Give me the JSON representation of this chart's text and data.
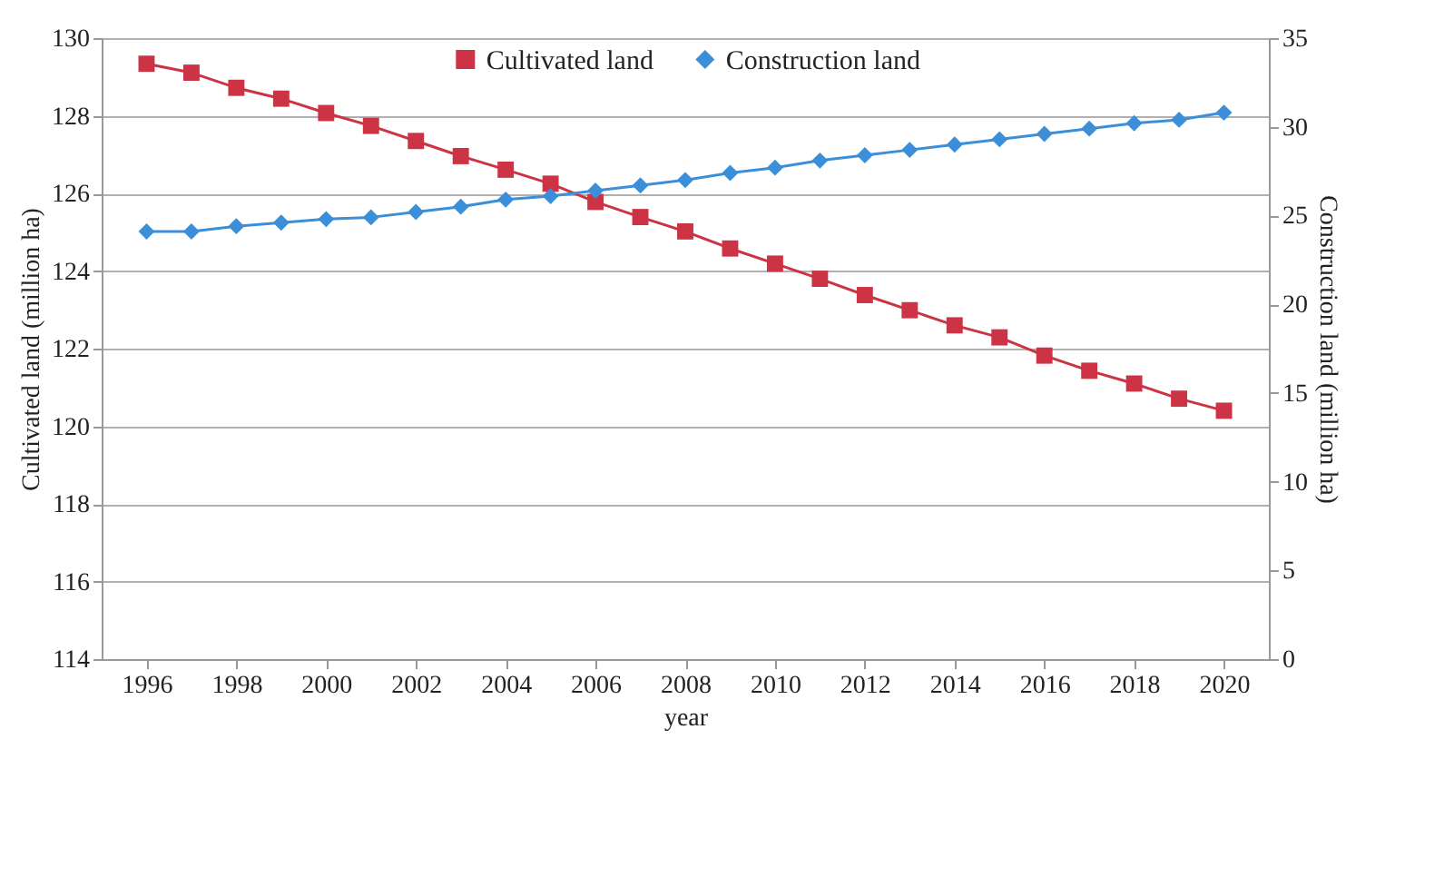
{
  "chart_data": {
    "type": "line",
    "xlabel": "year",
    "ylabel": "Cultivated land (million ha)",
    "y2label": "Construction land (million ha)",
    "x": [
      1996,
      1997,
      1998,
      1999,
      2000,
      2001,
      2002,
      2003,
      2004,
      2005,
      2006,
      2007,
      2008,
      2009,
      2010,
      2011,
      2012,
      2013,
      2014,
      2015,
      2016,
      2017,
      2018,
      2019,
      2020
    ],
    "series": [
      {
        "name": "Cultivated land",
        "color": "#cc3344",
        "marker": "square",
        "axis": "y",
        "values": [
          129.34,
          129.11,
          128.72,
          128.44,
          128.07,
          127.74,
          127.35,
          126.96,
          126.61,
          126.25,
          125.78,
          125.39,
          125.02,
          124.58,
          124.19,
          123.8,
          123.38,
          122.99,
          122.6,
          122.29,
          121.82,
          121.43,
          121.1,
          120.71,
          120.4
        ]
      },
      {
        "name": "Construction land",
        "color": "#3b8fd9",
        "marker": "diamond",
        "axis": "y2",
        "values": [
          24.1,
          24.1,
          24.4,
          24.6,
          24.8,
          24.9,
          25.2,
          25.5,
          25.9,
          26.1,
          26.4,
          26.7,
          27.0,
          27.4,
          27.7,
          28.1,
          28.4,
          28.7,
          29.0,
          29.3,
          29.6,
          29.9,
          30.2,
          30.4,
          30.8
        ]
      }
    ],
    "xlim": [
      1995,
      2021
    ],
    "xticks": [
      1996,
      1998,
      2000,
      2002,
      2004,
      2006,
      2008,
      2010,
      2012,
      2014,
      2016,
      2018,
      2020
    ],
    "ylim": [
      114,
      130
    ],
    "yticks": [
      114,
      116,
      118,
      120,
      122,
      124,
      126,
      128,
      130
    ],
    "y2lim": [
      0,
      35
    ],
    "y2ticks": [
      0,
      5,
      10,
      15,
      20,
      25,
      30,
      35
    ],
    "grid": "y",
    "legend": "top",
    "line_style": "solid"
  }
}
